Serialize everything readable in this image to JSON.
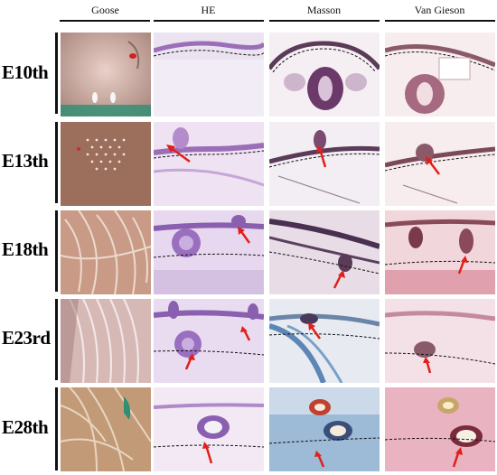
{
  "columns": [
    "Goose",
    "HE",
    "Masson",
    "Van Gieson"
  ],
  "rows": [
    "E10th",
    "E13th",
    "E18th",
    "E23rd",
    "E28th"
  ],
  "palette": {
    "goose": "#c8a39a",
    "he": "#b88fd0",
    "masson": "#c9b3c9",
    "masson_blue": "#7fa6c9",
    "vg": "#e4b3bd",
    "arrow": "#e0201b"
  }
}
